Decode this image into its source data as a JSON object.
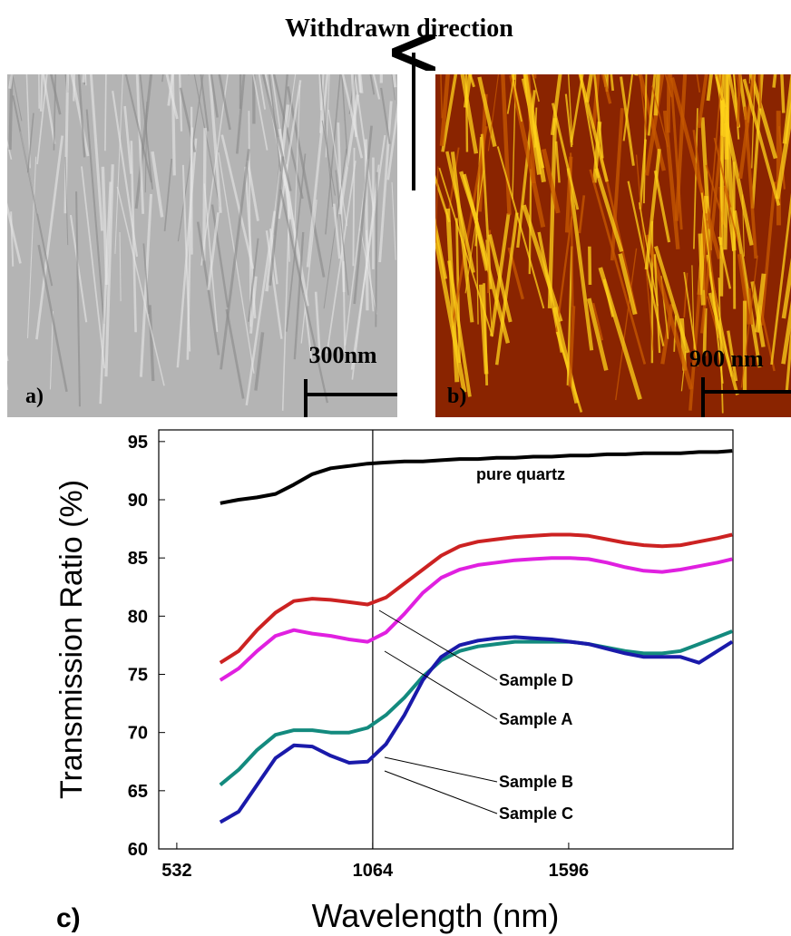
{
  "figure": {
    "direction_label": "Withdrawn direction",
    "panels": [
      {
        "label": "a)",
        "scale_bar": "300nm"
      },
      {
        "label": "b)",
        "scale_bar": "900 nm"
      }
    ]
  },
  "chart_data": {
    "type": "line",
    "panel_label": "c)",
    "x_label": "Wavelength (nm)",
    "y_label": "Transmission Ratio (%)",
    "x": [
      650,
      700,
      750,
      800,
      850,
      900,
      950,
      1000,
      1050,
      1100,
      1150,
      1200,
      1250,
      1300,
      1350,
      1400,
      1450,
      1500,
      1550,
      1600,
      1650,
      1700,
      1750,
      1800,
      1850,
      1900,
      1950,
      2000,
      2040
    ],
    "series": [
      {
        "name": "pure quartz",
        "color": "#000000",
        "values": [
          89.7,
          90.0,
          90.2,
          90.5,
          91.3,
          92.2,
          92.7,
          92.9,
          93.1,
          93.2,
          93.3,
          93.3,
          93.4,
          93.5,
          93.5,
          93.6,
          93.6,
          93.7,
          93.7,
          93.8,
          93.8,
          93.9,
          93.9,
          94.0,
          94.0,
          94.0,
          94.1,
          94.1,
          94.2
        ]
      },
      {
        "name": "Sample D",
        "color": "#cc2222",
        "values": [
          76.0,
          77.0,
          78.8,
          80.3,
          81.3,
          81.5,
          81.4,
          81.2,
          81.0,
          81.6,
          82.8,
          84.0,
          85.2,
          86.0,
          86.4,
          86.6,
          86.8,
          86.9,
          87.0,
          87.0,
          86.9,
          86.6,
          86.3,
          86.1,
          86.0,
          86.1,
          86.4,
          86.7,
          87.0
        ]
      },
      {
        "name": "Sample A",
        "color": "#e020e0",
        "values": [
          74.5,
          75.5,
          77.0,
          78.3,
          78.8,
          78.5,
          78.3,
          78.0,
          77.8,
          78.6,
          80.2,
          82.0,
          83.3,
          84.0,
          84.4,
          84.6,
          84.8,
          84.9,
          85.0,
          85.0,
          84.9,
          84.6,
          84.2,
          83.9,
          83.8,
          84.0,
          84.3,
          84.6,
          84.9
        ]
      },
      {
        "name": "Sample B",
        "color": "#138a7e",
        "values": [
          65.5,
          66.8,
          68.5,
          69.8,
          70.2,
          70.2,
          70.0,
          70.0,
          70.4,
          71.5,
          73.0,
          74.8,
          76.2,
          77.0,
          77.4,
          77.6,
          77.8,
          77.8,
          77.8,
          77.8,
          77.6,
          77.3,
          77.0,
          76.8,
          76.8,
          77.0,
          77.6,
          78.2,
          78.7
        ]
      },
      {
        "name": "Sample C",
        "color": "#1a1aaa",
        "values": [
          62.3,
          63.2,
          65.5,
          67.8,
          68.9,
          68.8,
          68.0,
          67.4,
          67.5,
          69.0,
          71.5,
          74.5,
          76.5,
          77.5,
          77.9,
          78.1,
          78.2,
          78.1,
          78.0,
          77.8,
          77.6,
          77.2,
          76.8,
          76.5,
          76.5,
          76.5,
          76.0,
          77.0,
          77.8
        ]
      }
    ],
    "xlim": [
      483,
      2042
    ],
    "xticks": [
      532,
      1064,
      1596
    ],
    "ylim": [
      60,
      96
    ],
    "yticks": [
      60,
      65,
      70,
      75,
      80,
      85,
      90,
      95
    ]
  }
}
